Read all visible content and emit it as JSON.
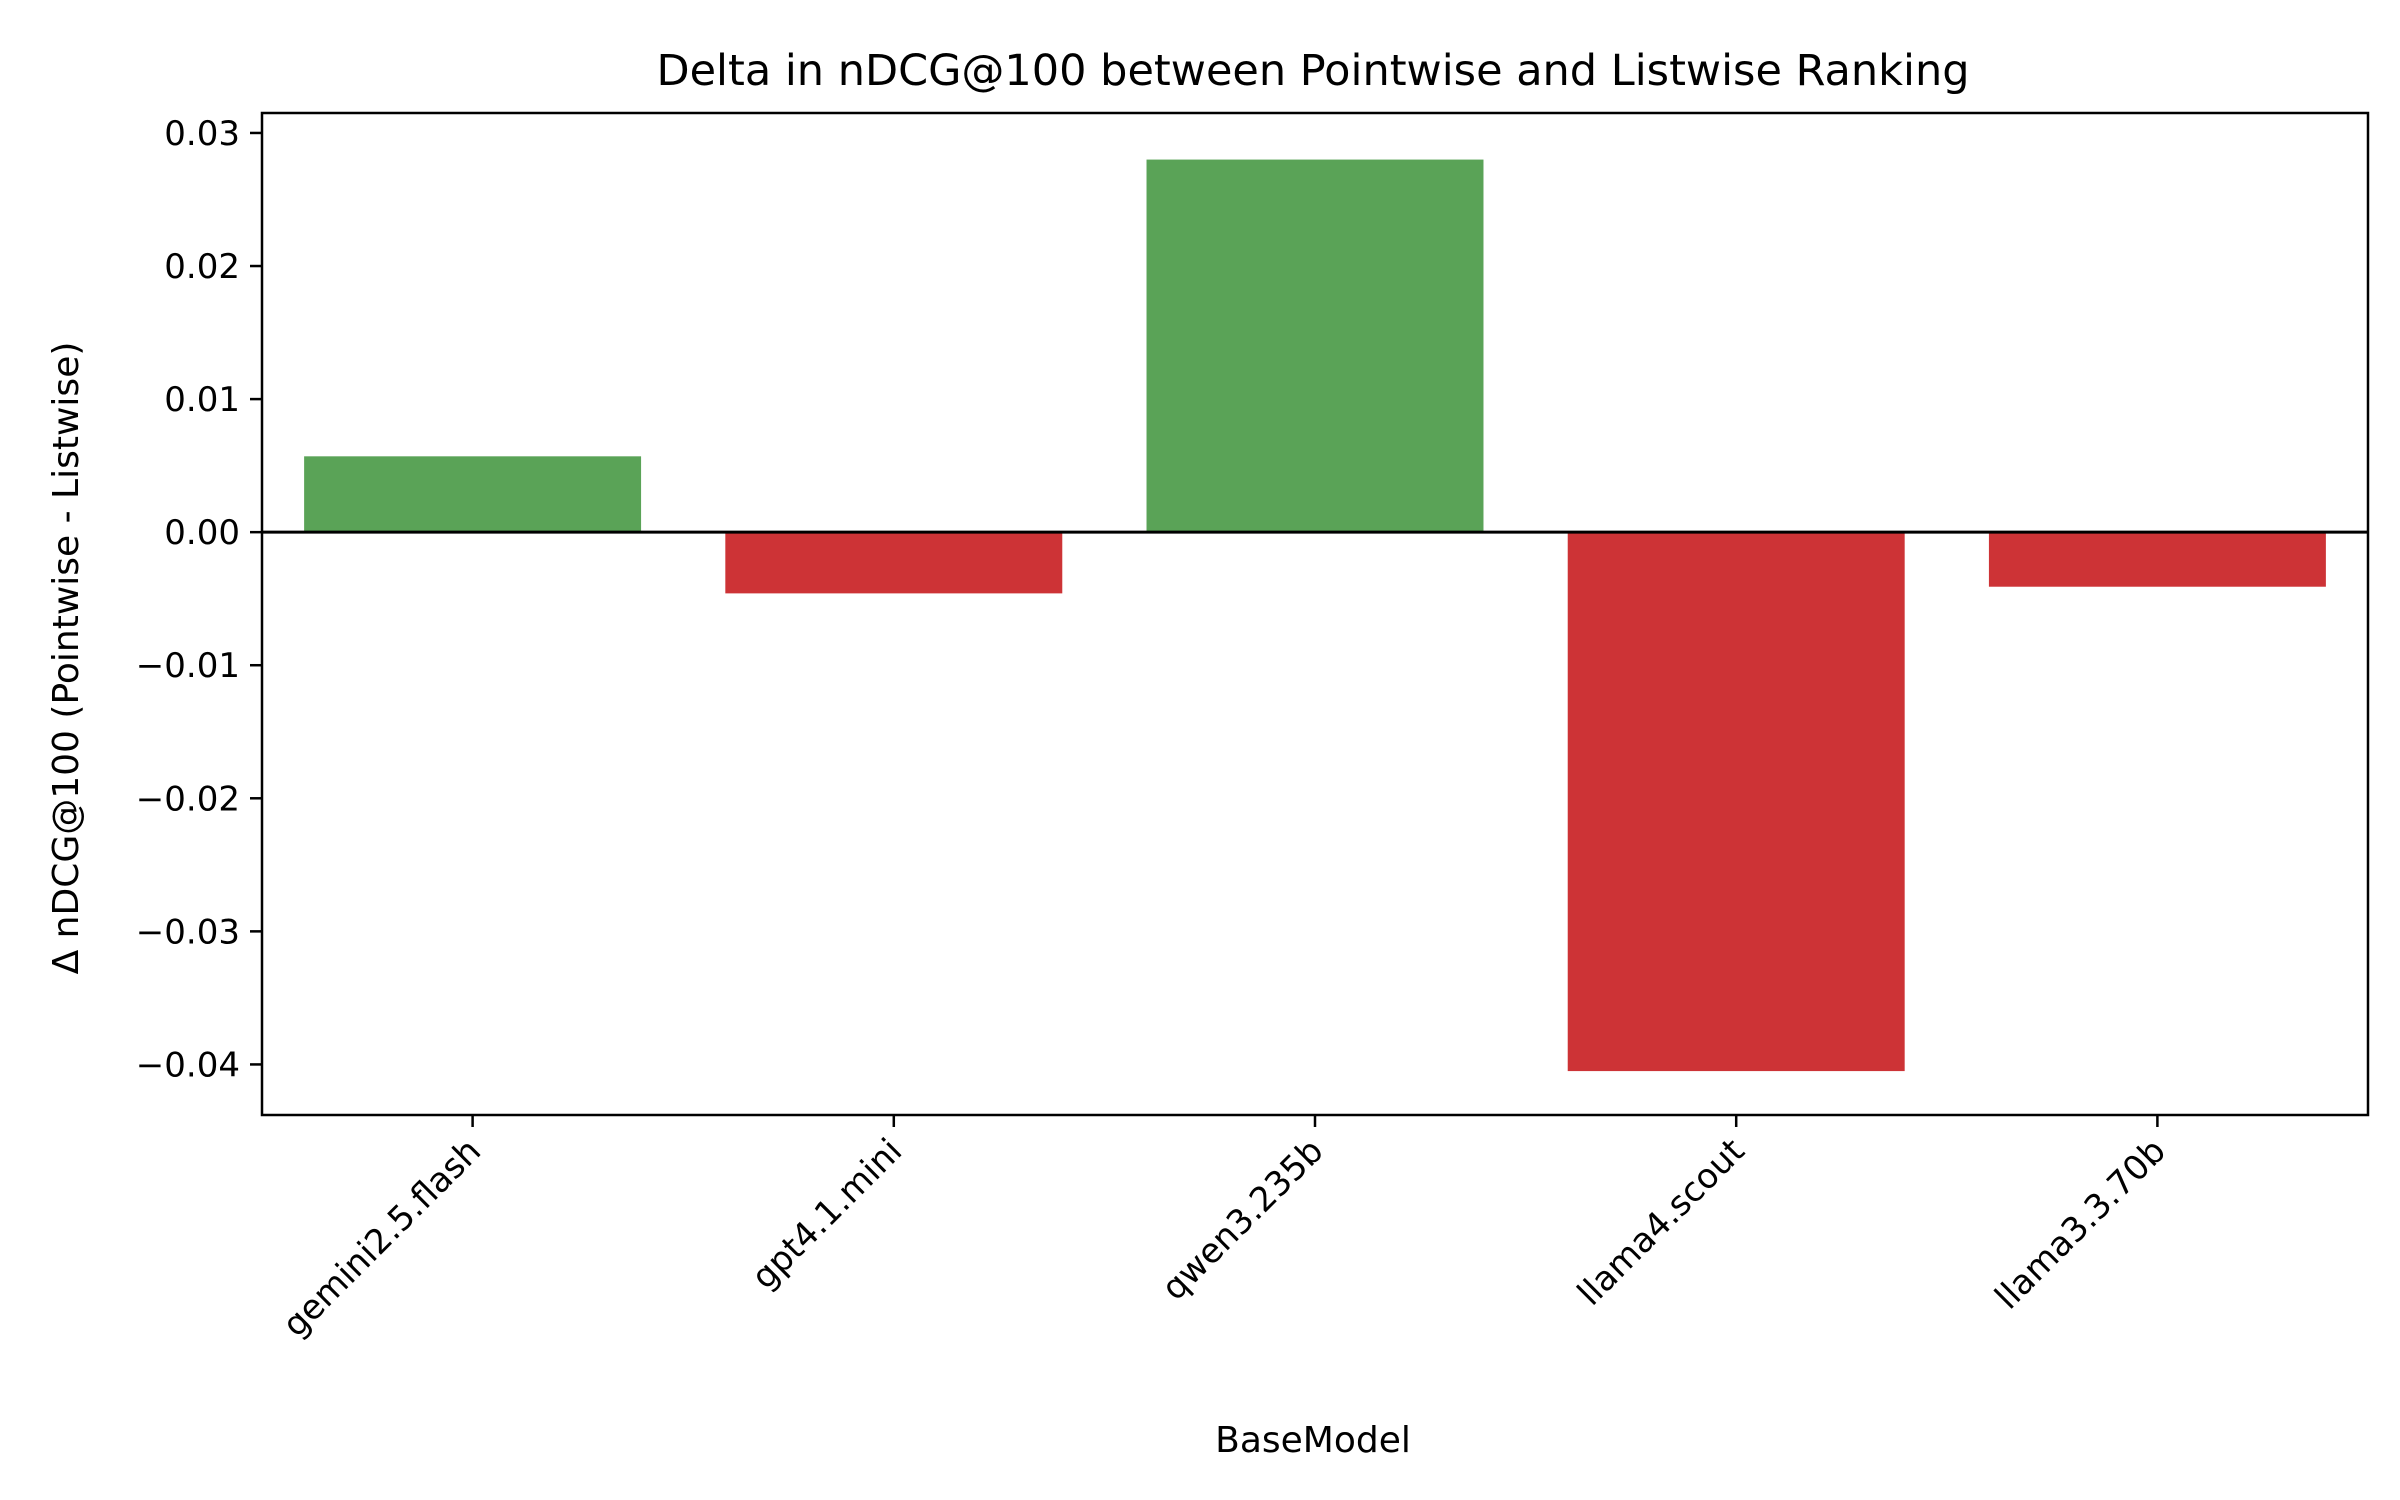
{
  "chart_data": {
    "type": "bar",
    "title": "Delta in nDCG@100 between Pointwise and Listwise Ranking",
    "xlabel": "BaseModel",
    "ylabel": "Δ nDCG@100 (Pointwise - Listwise)",
    "categories": [
      "gemini2.5.flash",
      "gpt4.1.mini",
      "qwen3.235b",
      "llama4.scout",
      "llama3.3.70b"
    ],
    "values": [
      0.0057,
      -0.0046,
      0.028,
      -0.0405,
      -0.0041
    ],
    "ylim": [
      -0.0438,
      0.0315
    ],
    "yticks": [
      0.03,
      0.02,
      0.01,
      0.0,
      -0.01,
      -0.02,
      -0.03,
      -0.04
    ],
    "ytick_labels": [
      "0.03",
      "0.02",
      "0.01",
      "0.00",
      "−0.01",
      "−0.02",
      "−0.03",
      "−0.04"
    ],
    "grid": false,
    "zero_line": true,
    "colors": {
      "positive": "#5aa357",
      "negative": "#cd3336",
      "axis": "#000000"
    }
  }
}
